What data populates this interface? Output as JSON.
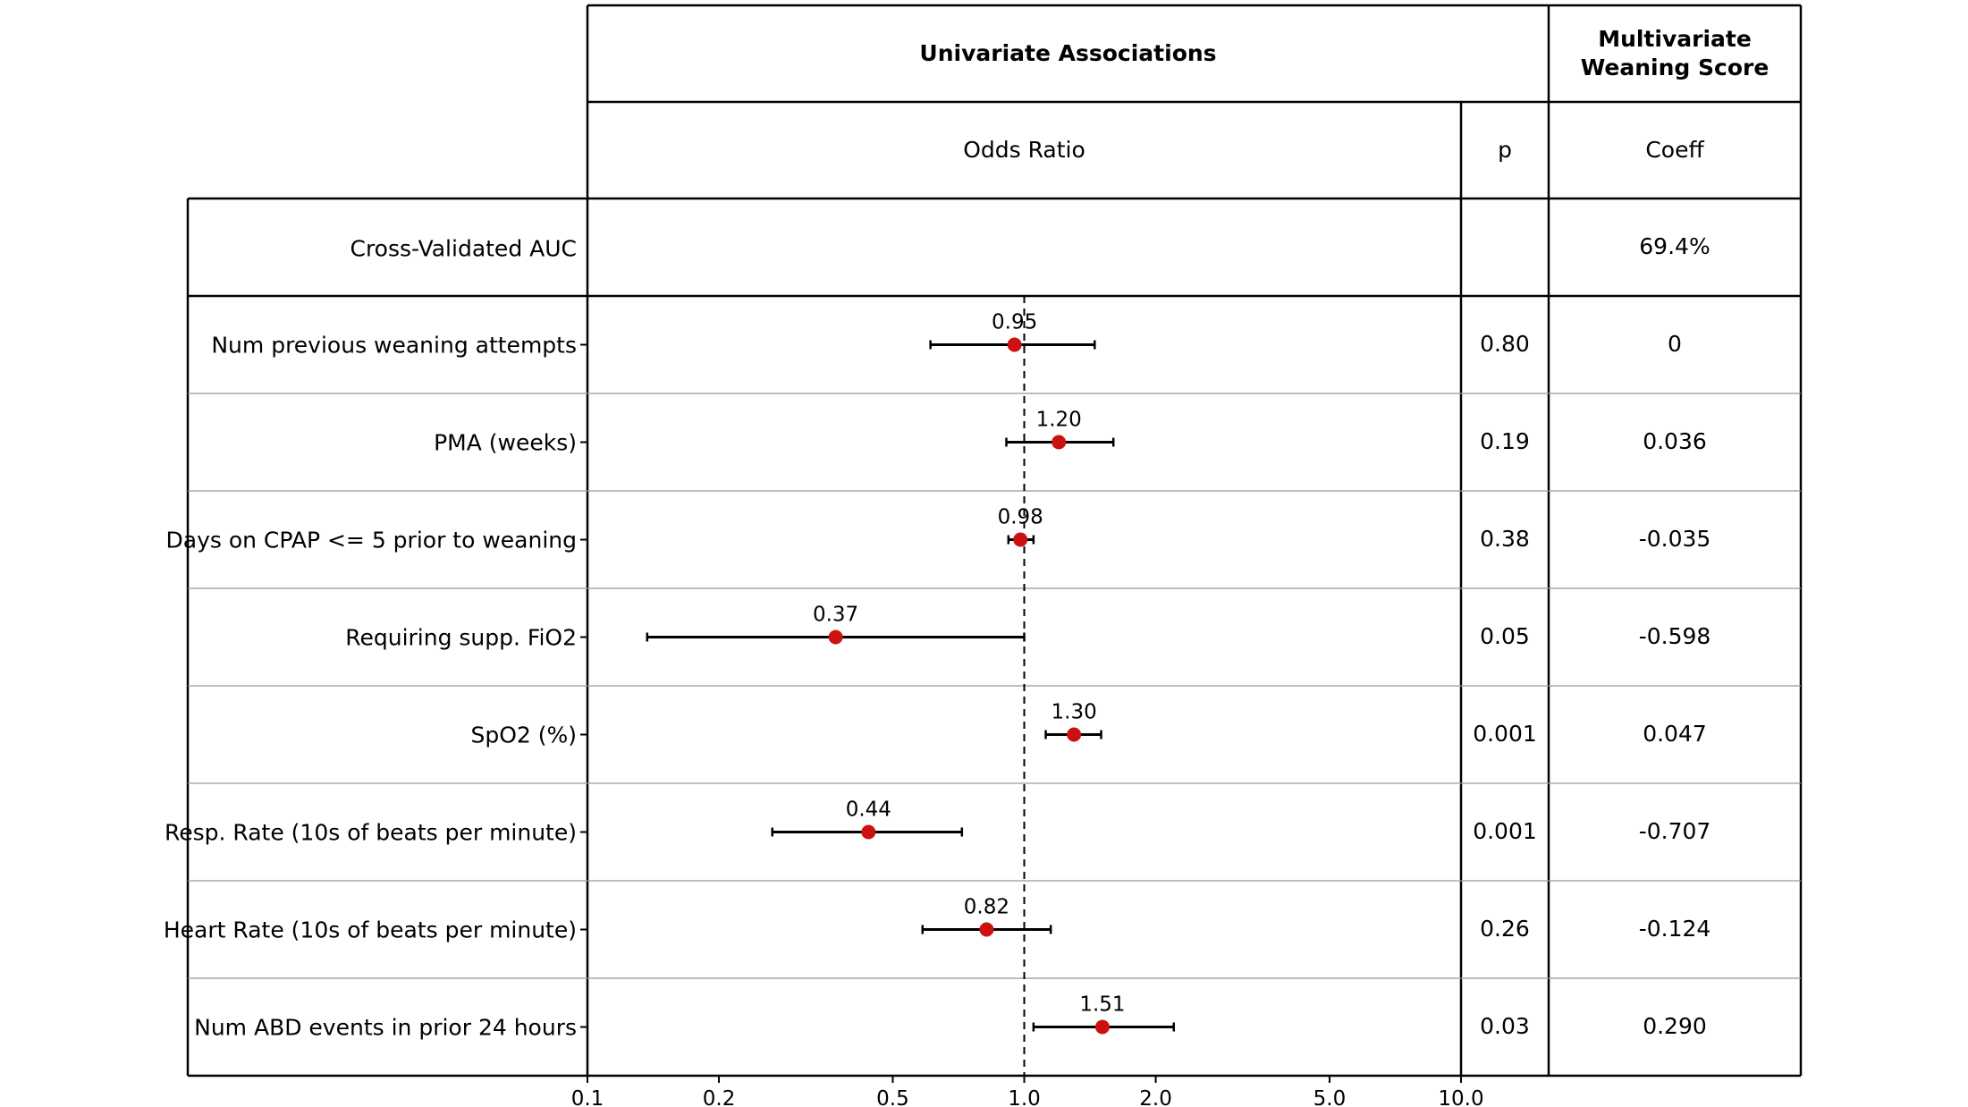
{
  "header": {
    "univariate": "Univariate Associations",
    "multivariate": "Multivariate Weaning Score",
    "odds_ratio": "Odds Ratio",
    "p": "p",
    "coeff": "Coeff"
  },
  "auc_row": {
    "label": "Cross-Validated AUC",
    "coeff": "69.4%"
  },
  "rows": [
    {
      "label": "Num previous weaning attempts",
      "p": "0.80",
      "coeff": "0"
    },
    {
      "label": "PMA (weeks)",
      "p": "0.19",
      "coeff": "0.036"
    },
    {
      "label": "Days on CPAP <= 5 prior to weaning",
      "p": "0.38",
      "coeff": "-0.035"
    },
    {
      "label": "Requiring supp. FiO2",
      "p": "0.05",
      "coeff": "-0.598"
    },
    {
      "label": "SpO2 (%)",
      "p": "0.001",
      "coeff": "0.047"
    },
    {
      "label": "Resp. Rate (10s of beats per minute)",
      "p": "0.001",
      "coeff": "-0.707"
    },
    {
      "label": "Heart Rate (10s of beats per minute)",
      "p": "0.26",
      "coeff": "-0.124"
    },
    {
      "label": "Num ABD events in prior 24 hours",
      "p": "0.03",
      "coeff": "0.290"
    }
  ],
  "colors": {
    "point": "#cc1111",
    "line": "#000000",
    "grid": "#999999"
  },
  "chart_data": {
    "type": "scatter",
    "subtype": "forest-plot",
    "xscale": "log",
    "xlim": [
      0.1,
      10.0
    ],
    "xticks": [
      0.1,
      0.2,
      0.5,
      1.0,
      2.0,
      5.0,
      10.0
    ],
    "xtick_labels": [
      "0.1",
      "0.2",
      "0.5",
      "1.0",
      "2.0",
      "5.0",
      "10.0"
    ],
    "reference_line": 1.0,
    "categories": [
      "Num previous weaning attempts",
      "PMA (weeks)",
      "Days on CPAP <= 5 prior to weaning",
      "Requiring supp. FiO2",
      "SpO2 (%)",
      "Resp. Rate (10s of beats per minute)",
      "Heart Rate (10s of beats per minute)",
      "Num ABD events in prior 24 hours"
    ],
    "odds_ratio": [
      0.95,
      1.2,
      0.98,
      0.37,
      1.3,
      0.44,
      0.82,
      1.51
    ],
    "odds_ratio_labels": [
      "0.95",
      "1.20",
      "0.98",
      "0.37",
      "1.30",
      "0.44",
      "0.82",
      "1.51"
    ],
    "ci_lower": [
      0.61,
      0.91,
      0.92,
      0.137,
      1.12,
      0.265,
      0.585,
      1.05
    ],
    "ci_upper": [
      1.45,
      1.6,
      1.05,
      1.0,
      1.5,
      0.72,
      1.15,
      2.2
    ]
  }
}
